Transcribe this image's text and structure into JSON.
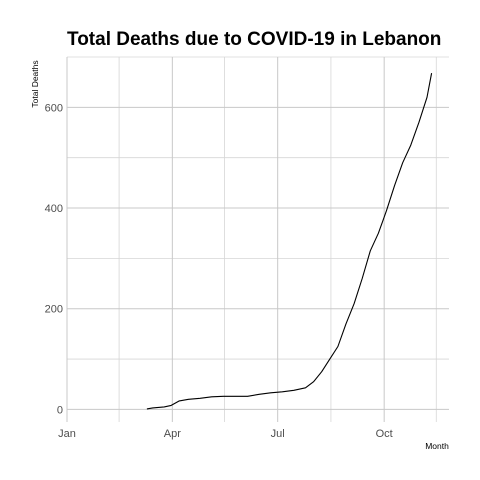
{
  "chart_data": {
    "type": "line",
    "title": "Total Deaths due to COVID-19 in Lebanon",
    "xlabel": "Month",
    "ylabel": "Total Deaths",
    "x_axis_type": "date",
    "xlim": [
      "2020-01-01",
      "2020-11-26"
    ],
    "ylim": [
      -25,
      700
    ],
    "x_ticks": [
      {
        "date": "2020-01-01",
        "label": "Jan"
      },
      {
        "date": "2020-04-01",
        "label": "Apr"
      },
      {
        "date": "2020-07-01",
        "label": "Jul"
      },
      {
        "date": "2020-10-01",
        "label": "Oct"
      }
    ],
    "x_minor_ticks": [
      "2020-02-15",
      "2020-05-16",
      "2020-08-16",
      "2020-11-15"
    ],
    "y_ticks": [
      0,
      200,
      400,
      600
    ],
    "y_minor_ticks": [
      100,
      300,
      500,
      700
    ],
    "grid": true,
    "legend": "none",
    "series": [
      {
        "x": [
          "2020-03-10",
          "2020-03-15",
          "2020-03-20",
          "2020-03-25",
          "2020-03-31",
          "2020-04-07",
          "2020-04-15",
          "2020-04-25",
          "2020-05-05",
          "2020-05-15",
          "2020-05-25",
          "2020-06-05",
          "2020-06-15",
          "2020-06-25",
          "2020-07-05",
          "2020-07-15",
          "2020-07-25",
          "2020-08-01",
          "2020-08-08",
          "2020-08-15",
          "2020-08-22",
          "2020-08-29",
          "2020-09-05",
          "2020-09-12",
          "2020-09-19",
          "2020-09-26",
          "2020-10-03",
          "2020-10-10",
          "2020-10-17",
          "2020-10-24",
          "2020-10-31",
          "2020-11-07",
          "2020-11-11"
        ],
        "y": [
          1,
          3,
          4,
          5,
          8,
          17,
          20,
          22,
          25,
          26,
          26,
          26,
          30,
          33,
          35,
          38,
          43,
          55,
          75,
          100,
          125,
          170,
          210,
          260,
          315,
          350,
          395,
          445,
          490,
          525,
          570,
          620,
          668
        ]
      }
    ]
  }
}
